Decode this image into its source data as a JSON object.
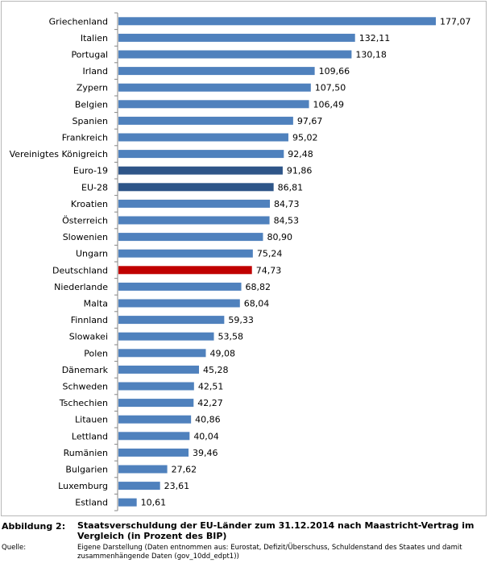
{
  "colors": {
    "default_bar": "#4f81bd",
    "aggregate_bar": "#2e5588",
    "highlight_bar": "#c00000",
    "axis": "#868686",
    "frame": "#b7b7b7"
  },
  "chart_data": {
    "type": "bar",
    "orientation": "horizontal",
    "categories": [
      "Griechenland",
      "Italien",
      "Portugal",
      "Irland",
      "Zypern",
      "Belgien",
      "Spanien",
      "Frankreich",
      "Vereinigtes Königreich",
      "Euro-19",
      "EU-28",
      "Kroatien",
      "Österreich",
      "Slowenien",
      "Ungarn",
      "Deutschland",
      "Niederlande",
      "Malta",
      "Finnland",
      "Slowakei",
      "Polen",
      "Dänemark",
      "Schweden",
      "Tschechien",
      "Litauen",
      "Lettland",
      "Rumänien",
      "Bulgarien",
      "Luxemburg",
      "Estland"
    ],
    "values": [
      177.07,
      132.11,
      130.18,
      109.66,
      107.5,
      106.49,
      97.67,
      95.02,
      92.48,
      91.86,
      86.81,
      84.73,
      84.53,
      80.9,
      75.24,
      74.73,
      68.82,
      68.04,
      59.33,
      53.58,
      49.08,
      45.28,
      42.51,
      42.27,
      40.86,
      40.04,
      39.46,
      27.62,
      23.61,
      10.61
    ],
    "value_labels": [
      "177,07",
      "132,11",
      "130,18",
      "109,66",
      "107,50",
      "106,49",
      "97,67",
      "95,02",
      "92,48",
      "91,86",
      "86,81",
      "84,73",
      "84,53",
      "80,90",
      "75,24",
      "74,73",
      "68,82",
      "68,04",
      "59,33",
      "53,58",
      "49,08",
      "45,28",
      "42,51",
      "42,27",
      "40,86",
      "40,04",
      "39,46",
      "27,62",
      "23,61",
      "10,61"
    ],
    "bar_roles": [
      "default",
      "default",
      "default",
      "default",
      "default",
      "default",
      "default",
      "default",
      "default",
      "aggregate",
      "aggregate",
      "default",
      "default",
      "default",
      "default",
      "highlight",
      "default",
      "default",
      "default",
      "default",
      "default",
      "default",
      "default",
      "default",
      "default",
      "default",
      "default",
      "default",
      "default",
      "default"
    ],
    "xlim": [
      0,
      190
    ],
    "grid": false,
    "legend": "none"
  },
  "caption": {
    "figure_label": "Abbildung 2:",
    "title": "Staatsverschuldung der EU-Länder zum 31.12.2014 nach Maastricht-Vertrag im Vergleich (in Prozent des BIP)",
    "source_label": "Quelle:",
    "source_text": "Eigene Darstellung (Daten entnommen aus: Eurostat, Defizit/Überschuss, Schuldenstand des Staates und damit zusammenhängende Daten (gov_10dd_edpt1))"
  }
}
